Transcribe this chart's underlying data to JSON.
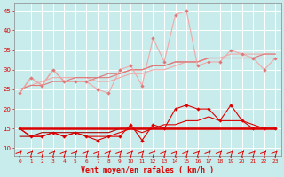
{
  "x": [
    0,
    1,
    2,
    3,
    4,
    5,
    6,
    7,
    8,
    9,
    10,
    11,
    12,
    13,
    14,
    15,
    16,
    17,
    18,
    19,
    20,
    21,
    22,
    23
  ],
  "line_rafales_spiky": [
    24,
    28,
    26,
    30,
    27,
    27,
    27,
    25,
    24,
    30,
    31,
    26,
    38,
    32,
    44,
    45,
    31,
    32,
    32,
    35,
    34,
    33,
    30,
    33
  ],
  "line_rafales_smooth1": [
    24,
    28,
    26,
    30,
    27,
    27,
    27,
    28,
    28,
    29,
    30,
    30,
    31,
    31,
    32,
    32,
    32,
    33,
    33,
    33,
    33,
    33,
    33,
    33
  ],
  "line_rafales_smooth2": [
    25,
    26,
    27,
    28,
    28,
    28,
    28,
    27,
    27,
    28,
    29,
    29,
    30,
    30,
    31,
    32,
    32,
    33,
    33,
    34,
    34,
    34,
    34,
    34
  ],
  "line_rafales_trend": [
    25,
    26,
    26,
    27,
    27,
    28,
    28,
    28,
    29,
    29,
    30,
    30,
    31,
    31,
    32,
    32,
    32,
    33,
    33,
    33,
    33,
    33,
    34,
    34
  ],
  "line_moyen_spiky": [
    15,
    13,
    13,
    14,
    13,
    14,
    13,
    12,
    13,
    13,
    16,
    12,
    16,
    15,
    20,
    21,
    20,
    20,
    17,
    21,
    17,
    15,
    15,
    15
  ],
  "line_moyen_smooth": [
    15,
    13,
    13,
    14,
    13,
    14,
    13,
    13,
    13,
    14,
    15,
    14,
    15,
    16,
    16,
    17,
    17,
    18,
    17,
    17,
    17,
    16,
    15,
    15
  ],
  "line_moyen_flat1": [
    15,
    15,
    15,
    15,
    15,
    15,
    15,
    15,
    15,
    15,
    15,
    15,
    15,
    15,
    15,
    15,
    15,
    15,
    15,
    15,
    15,
    15,
    15,
    15
  ],
  "line_moyen_flat2": [
    15,
    15,
    15,
    15,
    15,
    15,
    15,
    15,
    15,
    15,
    15,
    15,
    15,
    15,
    15,
    15,
    15,
    15,
    15,
    15,
    15,
    15,
    15,
    15
  ],
  "line_moyen_trend": [
    13,
    13,
    14,
    14,
    14,
    14,
    14,
    14,
    14,
    15,
    15,
    15,
    15,
    15,
    15,
    15,
    15,
    15,
    15,
    15,
    15,
    15,
    15,
    15
  ],
  "color_light_pink": "#f0a8a8",
  "color_med_pink": "#e07878",
  "color_red": "#dd0000",
  "color_dark_red": "#aa0000",
  "bg_color": "#c8ecec",
  "grid_color": "#ffffff",
  "xlabel": "Vent moyen/en rafales ( km/h )",
  "ylim_min": 8,
  "ylim_max": 47,
  "yticks": [
    10,
    15,
    20,
    25,
    30,
    35,
    40,
    45
  ]
}
